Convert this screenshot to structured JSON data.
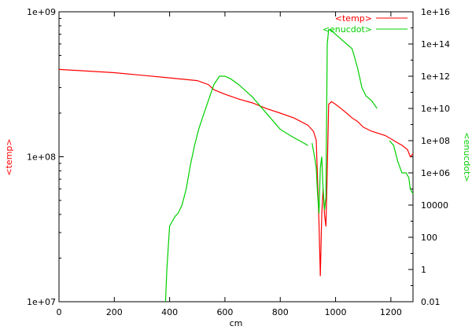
{
  "chart_data": {
    "type": "line",
    "xlabel": "cm",
    "y_left_label": "<temp>",
    "y_right_label": "<enucdot>",
    "x_range": [
      0,
      1280
    ],
    "y_left_range": [
      10000000,
      1000000000
    ],
    "y_right_range": [
      0.01,
      10000000000000000
    ],
    "log_left": true,
    "log_right": true,
    "x_ticks": [
      "0",
      "200",
      "400",
      "600",
      "800",
      "1000",
      "1200"
    ],
    "x_tick_values": [
      0,
      200,
      400,
      600,
      800,
      1000,
      1200
    ],
    "y_left_ticks": [
      "1e+07",
      "1e+08",
      "1e+09"
    ],
    "y_left_tick_values": [
      10000000,
      100000000,
      1000000000
    ],
    "y_right_ticks": [
      "0.01",
      "1",
      "100",
      "10000",
      "1e+06",
      "1e+08",
      "1e+10",
      "1e+12",
      "1e+14",
      "1e+16"
    ],
    "y_right_tick_values": [
      0.01,
      1,
      100,
      10000,
      1000000,
      100000000,
      10000000000,
      1000000000000,
      100000000000000,
      10000000000000000
    ],
    "legend_position": "top-right",
    "series": [
      {
        "name": "<temp>",
        "axis": "left",
        "color": "#ff0000",
        "segments": [
          [
            [
              0,
              400000000
            ],
            [
              100,
              390000000
            ],
            [
              200,
              380000000
            ],
            [
              300,
              365000000
            ],
            [
              400,
              350000000
            ],
            [
              500,
              335000000
            ],
            [
              540,
              315000000
            ],
            [
              560,
              290000000
            ],
            [
              600,
              270000000
            ],
            [
              650,
              250000000
            ],
            [
              700,
              235000000
            ],
            [
              750,
              215000000
            ],
            [
              800,
              200000000
            ],
            [
              850,
              185000000
            ],
            [
              900,
              165000000
            ],
            [
              920,
              150000000
            ],
            [
              930,
              130000000
            ],
            [
              940,
              35000000
            ],
            [
              945,
              15000000
            ],
            [
              950,
              40000000
            ],
            [
              955,
              60000000
            ],
            [
              960,
              40000000
            ],
            [
              965,
              33000000
            ],
            [
              970,
              80000000
            ],
            [
              975,
              230000000
            ],
            [
              985,
              240000000
            ],
            [
              1000,
              230000000
            ],
            [
              1020,
              215000000
            ],
            [
              1040,
              200000000
            ],
            [
              1060,
              185000000
            ],
            [
              1080,
              175000000
            ],
            [
              1100,
              160000000
            ],
            [
              1130,
              150000000
            ],
            [
              1180,
              140000000
            ],
            [
              1240,
              120000000
            ],
            [
              1260,
              112000000
            ],
            [
              1270,
              100000000
            ],
            [
              1280,
              105000000
            ]
          ]
        ]
      },
      {
        "name": "<enucdot>",
        "axis": "right",
        "color": "#00d000",
        "segments": [
          [
            [
              385,
              0.01
            ],
            [
              390,
              1
            ],
            [
              400,
              500
            ],
            [
              410,
              1000
            ],
            [
              420,
              2000
            ],
            [
              430,
              3000
            ],
            [
              445,
              10000
            ],
            [
              460,
              100000
            ],
            [
              475,
              3000000
            ],
            [
              490,
              50000000
            ],
            [
              505,
              500000000
            ],
            [
              520,
              3000000000
            ],
            [
              540,
              30000000000
            ],
            [
              560,
              300000000000
            ],
            [
              580,
              1000000000000
            ],
            [
              600,
              1000000000000
            ],
            [
              620,
              700000000000
            ],
            [
              650,
              300000000000
            ],
            [
              700,
              50000000000
            ],
            [
              750,
              5000000000
            ],
            [
              800,
              500000000
            ],
            [
              850,
              150000000
            ],
            [
              880,
              80000000
            ],
            [
              900,
              50000000
            ]
          ],
          [
            [
              915,
              70000000
            ],
            [
              925,
              8000000
            ],
            [
              930,
              2000000
            ],
            [
              935,
              50000
            ],
            [
              940,
              3000
            ],
            [
              945,
              2000000
            ],
            [
              950,
              10000000
            ],
            [
              955,
              100000
            ],
            [
              960,
              5000
            ],
            [
              965,
              30000
            ],
            [
              970,
              100000000000000
            ],
            [
              975,
              800000000000000
            ],
            [
              985,
              700000000000000
            ],
            [
              1000,
              400000000000000
            ],
            [
              1020,
              200000000000000
            ],
            [
              1040,
              100000000000000
            ],
            [
              1060,
              50000000000000
            ],
            [
              1080,
              3000000000000
            ],
            [
              1095,
              200000000000
            ],
            [
              1110,
              60000000000
            ],
            [
              1130,
              30000000000
            ],
            [
              1150,
              10000000000
            ]
          ],
          [
            [
              1195,
              100000000
            ],
            [
              1210,
              50000000
            ],
            [
              1225,
              5000000
            ],
            [
              1240,
              1000000
            ],
            [
              1255,
              1000000
            ],
            [
              1265,
              500000
            ],
            [
              1270,
              100000
            ],
            [
              1280,
              50000
            ]
          ]
        ]
      }
    ]
  }
}
